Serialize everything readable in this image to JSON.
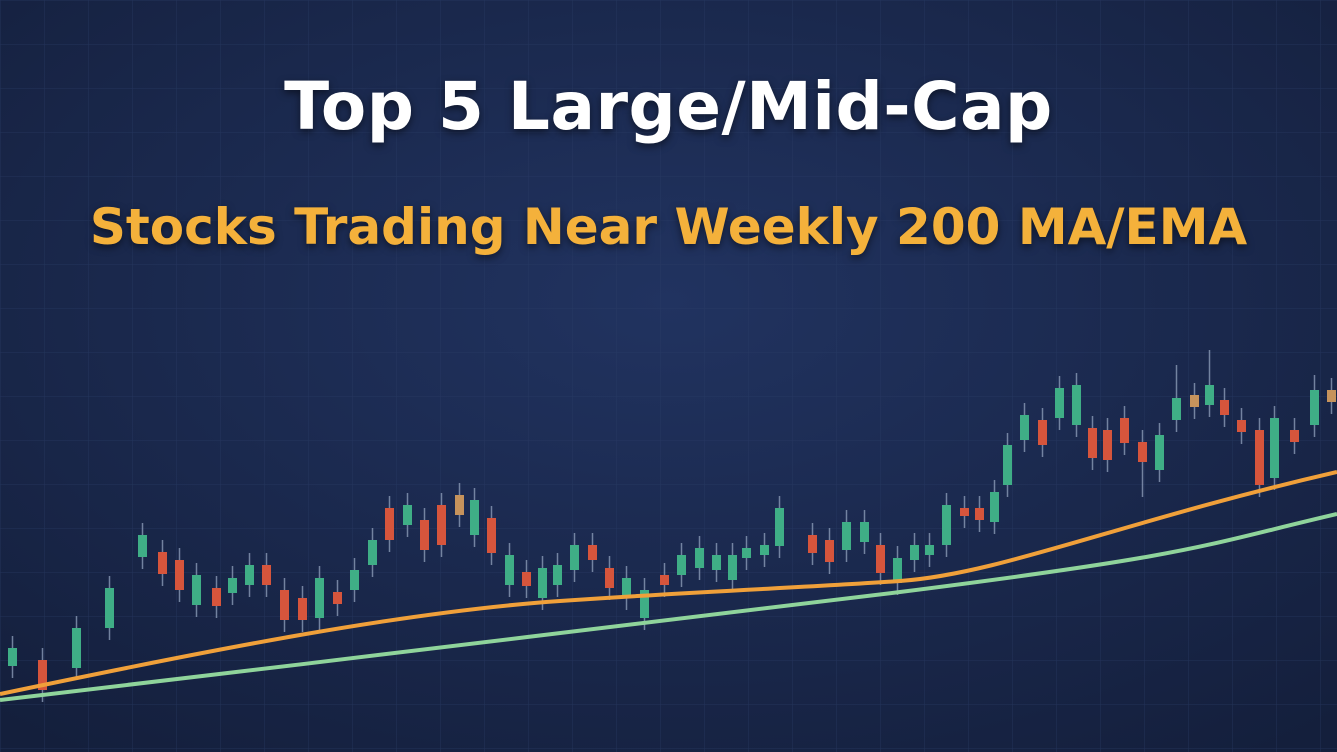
{
  "header": {
    "title": "Top 5 Large/Mid-Cap",
    "subtitle": "Stocks Trading Near Weekly 200 MA/EMA"
  }
}
